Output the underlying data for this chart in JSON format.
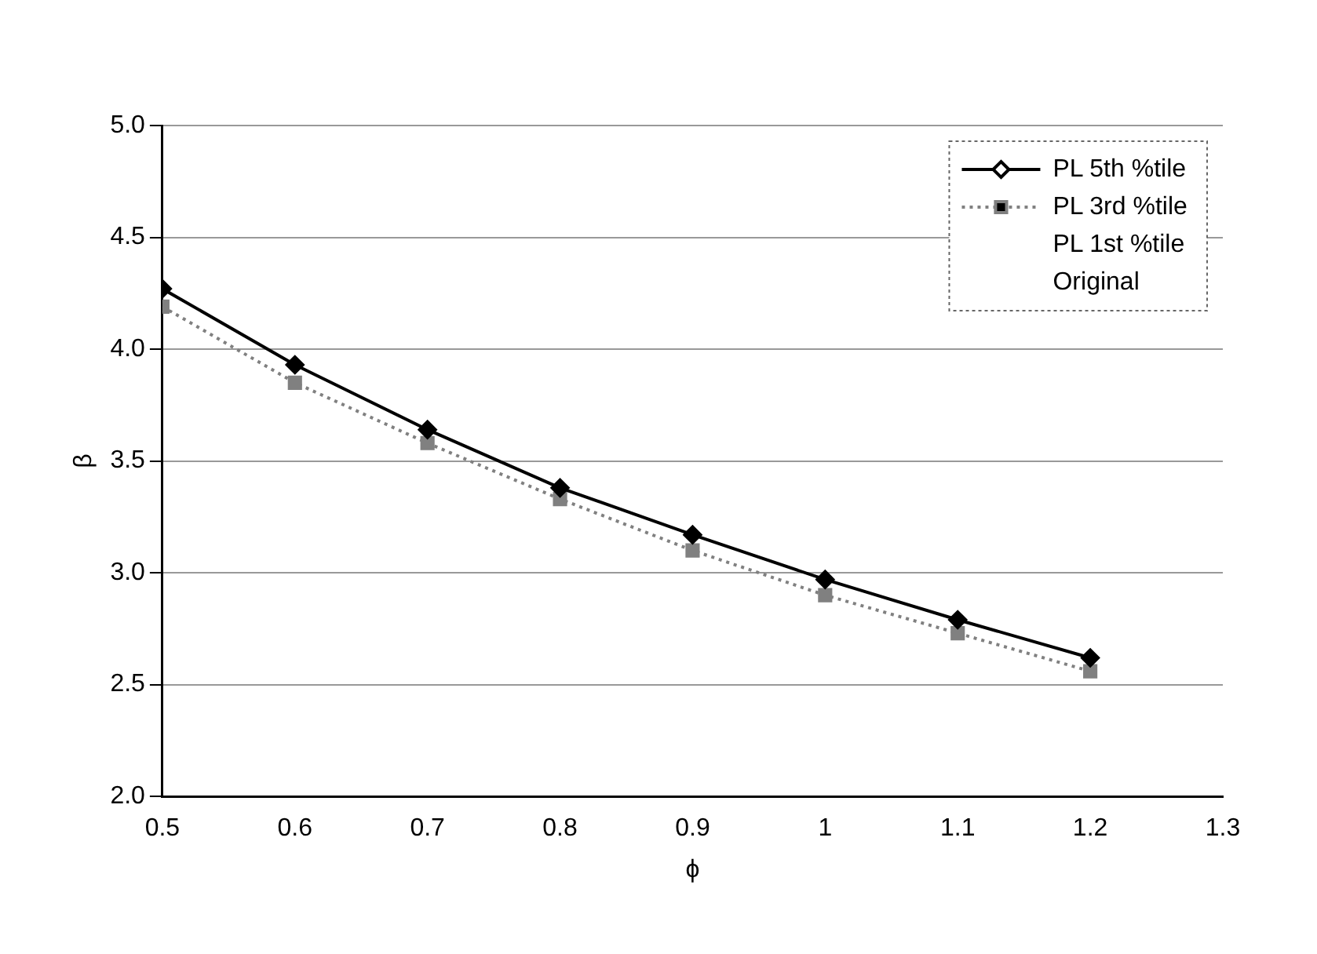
{
  "chart_data": {
    "type": "line",
    "xlabel": "ϕ",
    "ylabel": "β",
    "x": [
      0.5,
      0.6,
      0.7,
      0.8,
      0.9,
      1.0,
      1.1,
      1.2
    ],
    "series": [
      {
        "name": "PL 5th %tile",
        "color": "#000000",
        "marker": "diamond",
        "line_style": "solid",
        "values": [
          4.27,
          3.93,
          3.64,
          3.38,
          3.17,
          2.97,
          2.79,
          2.62
        ]
      },
      {
        "name": "PL 3rd %tile",
        "color": "#808080",
        "marker": "square",
        "line_style": "dotted",
        "values": [
          4.19,
          3.85,
          3.58,
          3.33,
          3.1,
          2.9,
          2.73,
          2.56
        ]
      },
      {
        "name": "PL 1st %tile",
        "values": [
          null,
          null,
          null,
          null,
          null,
          null,
          null,
          null
        ]
      },
      {
        "name": "Original",
        "values": [
          null,
          null,
          null,
          null,
          null,
          null,
          null,
          null
        ]
      }
    ],
    "xlim": [
      0.5,
      1.3
    ],
    "xticks": [
      0.5,
      0.6,
      0.7,
      0.8,
      0.9,
      {
        "value": 1.0,
        "label": "1"
      },
      1.1,
      1.2,
      1.3
    ],
    "ylim": [
      2.0,
      5.0
    ],
    "yticks": [
      {
        "value": 2.0,
        "label": "2.0"
      },
      2.5,
      {
        "value": 3.0,
        "label": "3.0"
      },
      3.5,
      {
        "value": 4.0,
        "label": "4.0"
      },
      4.5,
      {
        "value": 5.0,
        "label": "5.0"
      }
    ],
    "grid": "y",
    "legend": "top right"
  }
}
